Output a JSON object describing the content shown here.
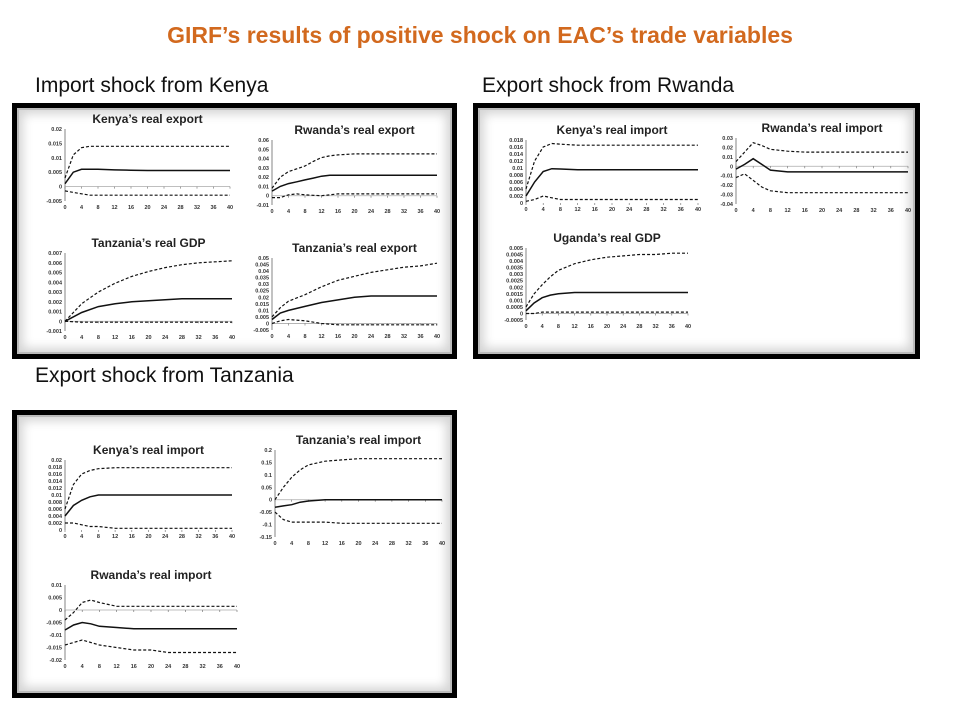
{
  "title": "GIRF’s results of positive shock on EAC’s  trade variables",
  "sections": [
    {
      "label": "Import shock from  Kenya"
    },
    {
      "label": "Export shock from Rwanda"
    },
    {
      "label": "Export shock from Tanzania"
    }
  ],
  "chart_data": [
    {
      "type": "line",
      "group": 0,
      "title": "Kenya’s real export",
      "x_ticks": [
        "0",
        "4",
        "8",
        "12",
        "16",
        "20",
        "24",
        "28",
        "32",
        "36",
        "40"
      ],
      "y_ticks": [
        "0.02",
        "0.015",
        "0.01",
        "0.005",
        "0",
        "-0.005"
      ],
      "ylim": [
        -0.005,
        0.02
      ],
      "x": [
        0,
        2,
        4,
        6,
        8,
        12,
        16,
        20,
        24,
        28,
        32,
        36,
        40
      ],
      "series": [
        {
          "style": "dashed",
          "values": [
            0.003,
            0.011,
            0.0135,
            0.014,
            0.014,
            0.014,
            0.014,
            0.014,
            0.014,
            0.014,
            0.014,
            0.014,
            0.014
          ]
        },
        {
          "style": "solid",
          "values": [
            0.001,
            0.005,
            0.006,
            0.006,
            0.006,
            0.0058,
            0.0057,
            0.0056,
            0.0056,
            0.0056,
            0.0056,
            0.0056,
            0.0056
          ]
        },
        {
          "style": "dashed",
          "values": [
            -0.0015,
            -0.002,
            -0.0025,
            -0.003,
            -0.003,
            -0.003,
            -0.003,
            -0.003,
            -0.003,
            -0.003,
            -0.003,
            -0.003,
            -0.003
          ]
        }
      ]
    },
    {
      "type": "line",
      "group": 0,
      "title": "Rwanda’s real export",
      "x_ticks": [
        "0",
        "4",
        "8",
        "12",
        "16",
        "20",
        "24",
        "28",
        "32",
        "36",
        "40"
      ],
      "y_ticks": [
        "0.06",
        "0.05",
        "0.04",
        "0.03",
        "0.02",
        "0.01",
        "0",
        "-0.01"
      ],
      "ylim": [
        -0.01,
        0.06
      ],
      "x": [
        0,
        2,
        4,
        6,
        8,
        10,
        12,
        14,
        16,
        20,
        24,
        28,
        32,
        36,
        40
      ],
      "series": [
        {
          "style": "dashed",
          "values": [
            0.008,
            0.02,
            0.026,
            0.029,
            0.032,
            0.037,
            0.041,
            0.043,
            0.044,
            0.045,
            0.045,
            0.045,
            0.045,
            0.045,
            0.045
          ]
        },
        {
          "style": "solid",
          "values": [
            0.005,
            0.01,
            0.013,
            0.015,
            0.017,
            0.019,
            0.021,
            0.022,
            0.022,
            0.022,
            0.022,
            0.022,
            0.022,
            0.022,
            0.022
          ]
        },
        {
          "style": "dashed",
          "values": [
            -0.002,
            -0.002,
            0.001,
            0.002,
            0.001,
            0.0005,
            0,
            0.001,
            0.002,
            0.002,
            0.002,
            0.002,
            0.002,
            0.002,
            0.002
          ]
        }
      ]
    },
    {
      "type": "line",
      "group": 0,
      "title": "Tanzania’s real GDP",
      "x_ticks": [
        "0",
        "4",
        "8",
        "12",
        "16",
        "20",
        "24",
        "28",
        "32",
        "36",
        "40"
      ],
      "y_ticks": [
        "0.007",
        "0.006",
        "0.005",
        "0.004",
        "0.003",
        "0.002",
        "0.001",
        "0",
        "-0.001"
      ],
      "ylim": [
        -0.001,
        0.007
      ],
      "x": [
        0,
        4,
        8,
        12,
        16,
        20,
        24,
        28,
        32,
        36,
        40
      ],
      "series": [
        {
          "style": "dashed",
          "values": [
            0,
            0.0018,
            0.003,
            0.0039,
            0.0046,
            0.0051,
            0.0055,
            0.0058,
            0.006,
            0.0061,
            0.0062
          ]
        },
        {
          "style": "solid",
          "values": [
            0,
            0.0009,
            0.0015,
            0.0018,
            0.002,
            0.0021,
            0.0022,
            0.0023,
            0.0023,
            0.0023,
            0.0023
          ]
        },
        {
          "style": "dashed",
          "values": [
            0,
            -0.0001,
            -0.0001,
            -0.0001,
            -0.0001,
            -0.0001,
            -0.0001,
            -0.0001,
            -0.0001,
            -0.0001,
            -0.0001
          ]
        }
      ]
    },
    {
      "type": "line",
      "group": 0,
      "title": "Tanzania’s real export",
      "x_ticks": [
        "0",
        "4",
        "8",
        "12",
        "16",
        "20",
        "24",
        "28",
        "32",
        "36",
        "40"
      ],
      "y_ticks": [
        "0.05",
        "0.045",
        "0.04",
        "0.035",
        "0.03",
        "0.025",
        "0.02",
        "0.015",
        "0.01",
        "0.005",
        "0",
        "-0.005"
      ],
      "ylim": [
        -0.005,
        0.05
      ],
      "x": [
        0,
        2,
        4,
        8,
        12,
        16,
        20,
        24,
        28,
        32,
        36,
        40
      ],
      "series": [
        {
          "style": "dashed",
          "values": [
            0.005,
            0.012,
            0.017,
            0.022,
            0.028,
            0.033,
            0.036,
            0.039,
            0.041,
            0.043,
            0.044,
            0.046
          ]
        },
        {
          "style": "solid",
          "values": [
            0.003,
            0.008,
            0.01,
            0.013,
            0.016,
            0.018,
            0.02,
            0.021,
            0.021,
            0.021,
            0.021,
            0.021
          ]
        },
        {
          "style": "dashed",
          "values": [
            0,
            0.002,
            0.003,
            0.002,
            0,
            -0.001,
            -0.001,
            -0.001,
            -0.001,
            -0.001,
            -0.001,
            -0.001
          ]
        }
      ]
    },
    {
      "type": "line",
      "group": 1,
      "title": "Kenya’s real import",
      "x_ticks": [
        "0",
        "4",
        "8",
        "12",
        "16",
        "20",
        "24",
        "28",
        "32",
        "36",
        "40"
      ],
      "y_ticks": [
        "0.018",
        "0.016",
        "0.014",
        "0.012",
        "0.01",
        "0.008",
        "0.006",
        "0.004",
        "0.002",
        "0"
      ],
      "ylim": [
        0,
        0.018
      ],
      "x": [
        0,
        2,
        4,
        6,
        8,
        12,
        16,
        20,
        24,
        28,
        32,
        36,
        40
      ],
      "series": [
        {
          "style": "dashed",
          "values": [
            0.004,
            0.012,
            0.016,
            0.017,
            0.0168,
            0.0165,
            0.0165,
            0.0165,
            0.0165,
            0.0165,
            0.0165,
            0.0165,
            0.0165
          ]
        },
        {
          "style": "solid",
          "values": [
            0.002,
            0.006,
            0.009,
            0.0098,
            0.0097,
            0.0095,
            0.0095,
            0.0095,
            0.0095,
            0.0095,
            0.0095,
            0.0095,
            0.0095
          ]
        },
        {
          "style": "dashed",
          "values": [
            0.0005,
            0.001,
            0.002,
            0.0015,
            0.001,
            0.001,
            0.001,
            0.001,
            0.001,
            0.001,
            0.001,
            0.001,
            0.001
          ]
        }
      ]
    },
    {
      "type": "line",
      "group": 1,
      "title": "Rwanda’s real import",
      "x_ticks": [
        "0",
        "4",
        "8",
        "12",
        "16",
        "20",
        "24",
        "28",
        "32",
        "36",
        "40"
      ],
      "y_ticks": [
        "0.03",
        "0.02",
        "0.01",
        "0",
        "-0.01",
        "-0.02",
        "-0.03",
        "-0.04"
      ],
      "ylim": [
        -0.04,
        0.03
      ],
      "x": [
        0,
        2,
        4,
        6,
        8,
        12,
        16,
        20,
        24,
        28,
        32,
        36,
        40
      ],
      "series": [
        {
          "style": "dashed",
          "values": [
            0.005,
            0.015,
            0.025,
            0.022,
            0.018,
            0.016,
            0.015,
            0.015,
            0.015,
            0.015,
            0.015,
            0.015,
            0.015
          ]
        },
        {
          "style": "solid",
          "values": [
            -0.003,
            0.002,
            0.008,
            0.002,
            -0.004,
            -0.006,
            -0.006,
            -0.006,
            -0.006,
            -0.006,
            -0.006,
            -0.006,
            -0.006
          ]
        },
        {
          "style": "dashed",
          "values": [
            -0.012,
            -0.008,
            -0.015,
            -0.022,
            -0.026,
            -0.028,
            -0.028,
            -0.028,
            -0.028,
            -0.028,
            -0.028,
            -0.028,
            -0.028
          ]
        }
      ]
    },
    {
      "type": "line",
      "group": 1,
      "title": "Uganda’s real GDP",
      "x_ticks": [
        "0",
        "4",
        "8",
        "12",
        "16",
        "20",
        "24",
        "28",
        "32",
        "36",
        "40"
      ],
      "y_ticks": [
        "0.005",
        "0.0045",
        "0.004",
        "0.0035",
        "0.003",
        "0.0025",
        "0.002",
        "0.0015",
        "0.001",
        "0.0005",
        "0",
        "-0.0005"
      ],
      "ylim": [
        -0.0005,
        0.005
      ],
      "x": [
        0,
        2,
        4,
        6,
        8,
        12,
        16,
        20,
        24,
        28,
        32,
        36,
        40
      ],
      "series": [
        {
          "style": "dashed",
          "values": [
            0.0005,
            0.0015,
            0.0022,
            0.0028,
            0.0033,
            0.0038,
            0.0041,
            0.0043,
            0.0044,
            0.0045,
            0.0045,
            0.0046,
            0.0046
          ]
        },
        {
          "style": "solid",
          "values": [
            0.0002,
            0.0008,
            0.0012,
            0.0014,
            0.0015,
            0.0016,
            0.0016,
            0.0016,
            0.0016,
            0.0016,
            0.0016,
            0.0016,
            0.0016
          ]
        },
        {
          "style": "dashed",
          "values": [
            0,
            0,
            0.0001,
            0.0001,
            0.0001,
            0.0001,
            0.0001,
            0.0001,
            0.0001,
            0.0001,
            0.0001,
            0.0001,
            0.0001
          ]
        }
      ]
    },
    {
      "type": "line",
      "group": 2,
      "title": "Kenya’s real import",
      "x_ticks": [
        "0",
        "4",
        "8",
        "12",
        "16",
        "20",
        "24",
        "28",
        "32",
        "36",
        "40"
      ],
      "y_ticks": [
        "0.02",
        "0.018",
        "0.016",
        "0.014",
        "0.012",
        "0.01",
        "0.008",
        "0.006",
        "0.004",
        "0.002",
        "0"
      ],
      "ylim": [
        0,
        0.02
      ],
      "x": [
        0,
        2,
        4,
        6,
        8,
        12,
        16,
        20,
        24,
        28,
        32,
        36,
        40
      ],
      "series": [
        {
          "style": "dashed",
          "values": [
            0.006,
            0.013,
            0.016,
            0.017,
            0.0175,
            0.0178,
            0.0178,
            0.0178,
            0.0178,
            0.0178,
            0.0178,
            0.0178,
            0.0178
          ]
        },
        {
          "style": "solid",
          "values": [
            0.004,
            0.007,
            0.0085,
            0.0095,
            0.01,
            0.01,
            0.01,
            0.01,
            0.01,
            0.01,
            0.01,
            0.01,
            0.01
          ]
        },
        {
          "style": "dashed",
          "values": [
            0.002,
            0.002,
            0.0015,
            0.001,
            0.001,
            0.0005,
            0.0005,
            0.0005,
            0.0005,
            0.0005,
            0.0005,
            0.0005,
            0.0005
          ]
        }
      ]
    },
    {
      "type": "line",
      "group": 2,
      "title": "Tanzania’s real import",
      "x_ticks": [
        "0",
        "4",
        "8",
        "12",
        "16",
        "20",
        "24",
        "28",
        "32",
        "36",
        "40"
      ],
      "y_ticks": [
        "0.2",
        "0.15",
        "0.1",
        "0.05",
        "0",
        "-0.05",
        "-0.1",
        "-0.15"
      ],
      "ylim": [
        -0.15,
        0.2
      ],
      "x": [
        0,
        2,
        4,
        6,
        8,
        12,
        16,
        20,
        24,
        28,
        32,
        36,
        40
      ],
      "series": [
        {
          "style": "dashed",
          "values": [
            0,
            0.05,
            0.09,
            0.12,
            0.14,
            0.155,
            0.16,
            0.165,
            0.165,
            0.165,
            0.165,
            0.165,
            0.165
          ]
        },
        {
          "style": "solid",
          "values": [
            -0.03,
            -0.025,
            -0.02,
            -0.01,
            -0.005,
            0,
            0,
            0,
            0,
            0,
            0,
            0,
            0
          ]
        },
        {
          "style": "dashed",
          "values": [
            -0.05,
            -0.08,
            -0.09,
            -0.09,
            -0.09,
            -0.09,
            -0.095,
            -0.095,
            -0.095,
            -0.095,
            -0.095,
            -0.095,
            -0.095
          ]
        }
      ]
    },
    {
      "type": "line",
      "group": 2,
      "title": "Rwanda’s real import",
      "x_ticks": [
        "0",
        "4",
        "8",
        "12",
        "16",
        "20",
        "24",
        "28",
        "32",
        "36",
        "40"
      ],
      "y_ticks": [
        "0.01",
        "0.005",
        "0",
        "-0.005",
        "-0.01",
        "-0.015",
        "-0.02"
      ],
      "ylim": [
        -0.02,
        0.01
      ],
      "x": [
        0,
        2,
        4,
        6,
        8,
        12,
        16,
        20,
        24,
        28,
        32,
        36,
        40
      ],
      "series": [
        {
          "style": "dashed",
          "values": [
            -0.004,
            -0.001,
            0.003,
            0.004,
            0.003,
            0.0015,
            0.0015,
            0.0015,
            0.0015,
            0.0015,
            0.0015,
            0.0015,
            0.0015
          ]
        },
        {
          "style": "solid",
          "values": [
            -0.008,
            -0.006,
            -0.005,
            -0.0055,
            -0.0065,
            -0.007,
            -0.0075,
            -0.0075,
            -0.0075,
            -0.0075,
            -0.0075,
            -0.0075,
            -0.0075
          ]
        },
        {
          "style": "dashed",
          "values": [
            -0.014,
            -0.013,
            -0.012,
            -0.013,
            -0.014,
            -0.015,
            -0.016,
            -0.016,
            -0.017,
            -0.017,
            -0.017,
            -0.017,
            -0.017
          ]
        }
      ]
    }
  ]
}
